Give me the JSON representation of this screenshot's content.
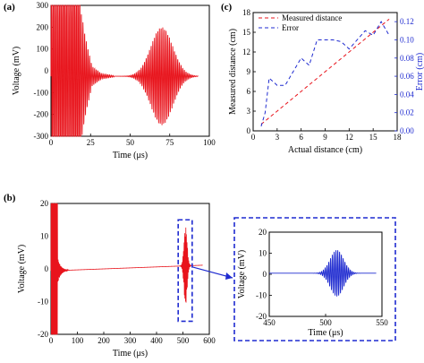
{
  "colors": {
    "red": "#e8141c",
    "blue": "#1f2bd0",
    "axis": "#000000"
  },
  "chart_data": [
    {
      "id": "a",
      "type": "line",
      "title": "(a)",
      "xlabel": "Time (μs)",
      "ylabel": "Voltage (mV)",
      "xlim": [
        0,
        100
      ],
      "ylim": [
        -300,
        300
      ],
      "xticks": [
        0,
        25,
        50,
        75,
        100
      ],
      "yticks": [
        -300,
        -200,
        -100,
        0,
        100,
        200,
        300
      ],
      "series": [
        {
          "color": "#e8141c",
          "sampled_envelope": {
            "baseline": -25,
            "saturated_until": 19,
            "ringdown": [
              {
                "x": 19,
                "amp": 300
              },
              {
                "x": 22,
                "amp": 170
              },
              {
                "x": 26,
                "amp": 45
              },
              {
                "x": 32,
                "amp": 12
              },
              {
                "x": 40,
                "amp": 3
              }
            ],
            "echo": {
              "center": 70,
              "peak_amp": 225,
              "width": 7
            }
          }
        }
      ]
    },
    {
      "id": "c",
      "type": "line",
      "title": "(c)",
      "xlabel": "Actual distance  (cm)",
      "ylabel": "Measured distance  (cm)",
      "ylabel_right": "Error  (cm)",
      "xlim": [
        0,
        18
      ],
      "ylim": [
        0,
        18
      ],
      "ylim_right": [
        0,
        0.13
      ],
      "xticks": [
        0,
        3,
        6,
        9,
        12,
        15,
        18
      ],
      "yticks": [
        0,
        3,
        6,
        9,
        12,
        15,
        18
      ],
      "yticks_right": [
        "0.00",
        "0.02",
        "0.04",
        "0.06",
        "0.08",
        "0.10",
        "0.12"
      ],
      "legend_position": "top-left",
      "series": [
        {
          "name": "Measured distance",
          "color": "#e8141c",
          "axis": "left",
          "x": [
            1,
            2,
            3,
            4,
            5,
            6,
            7,
            8,
            9,
            10,
            11,
            12,
            13,
            14,
            15,
            16,
            17
          ],
          "y": [
            1,
            2,
            3,
            4,
            5,
            6,
            7,
            8,
            9,
            10,
            11,
            12,
            13,
            14,
            15,
            16,
            17
          ]
        },
        {
          "name": "Error",
          "color": "#1f2bd0",
          "axis": "right",
          "x": [
            1,
            1.5,
            2,
            3,
            4,
            5,
            6,
            7,
            8,
            9,
            10,
            11,
            12,
            13,
            14,
            15,
            16,
            17
          ],
          "y": [
            0.005,
            0.02,
            0.058,
            0.05,
            0.05,
            0.065,
            0.08,
            0.072,
            0.1,
            0.1,
            0.1,
            0.098,
            0.09,
            0.1,
            0.11,
            0.105,
            0.12,
            0.105
          ]
        }
      ]
    },
    {
      "id": "b",
      "type": "line",
      "title": "(b)",
      "xlabel": "Time (μs)",
      "ylabel": "Voltage (mV)",
      "xlim": [
        0,
        600
      ],
      "ylim": [
        -20,
        20
      ],
      "xticks": [
        0,
        100,
        200,
        300,
        400,
        500,
        600
      ],
      "yticks": [
        -20,
        -10,
        0,
        10,
        20
      ],
      "series": [
        {
          "color": "#e8141c",
          "sampled_envelope": {
            "saturated_until": 25,
            "baseline_start": -0.6,
            "baseline_end": 1.2,
            "echo": {
              "center": 510,
              "peak_amp": 12,
              "width": 6
            }
          }
        }
      ]
    },
    {
      "id": "b-inset",
      "type": "line",
      "title": "",
      "xlabel": "Time (μs)",
      "ylabel": "Voltage (mV)",
      "xlim": [
        450,
        550
      ],
      "ylim": [
        -20,
        20
      ],
      "xticks": [
        450,
        500,
        550
      ],
      "yticks": [
        -20,
        -10,
        0,
        10,
        20
      ],
      "series": [
        {
          "color": "#1f2bd0",
          "sampled_envelope": {
            "baseline": 0.5,
            "echo": {
              "center": 510,
              "peak_amp": 11,
              "width": 6
            }
          }
        }
      ]
    }
  ],
  "labels": {
    "a_title": "(a)",
    "b_title": "(b)",
    "c_title": "(c)"
  }
}
